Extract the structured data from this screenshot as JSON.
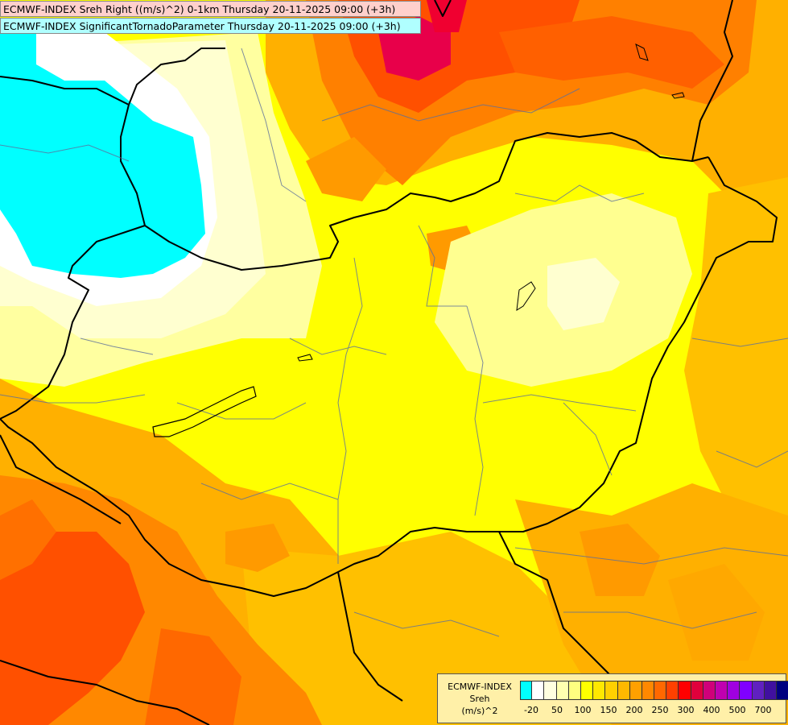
{
  "titles": {
    "line1": "ECMWF-INDEX Sreh Right ((m/s)^2) 0-1km Thursday 20-11-2025 09:00 (+3h)",
    "line2": "ECMWF-INDEX SignificantTornadoParameter Thursday 20-11-2025 09:00 (+3h)"
  },
  "legend": {
    "title_line1": "ECMWF-INDEX",
    "title_line2": "Sreh",
    "title_line3": "(m/s)^2",
    "colors": [
      "#00ffff",
      "#ffffff",
      "#ffffe0",
      "#ffffb0",
      "#ffff80",
      "#ffff00",
      "#ffe800",
      "#ffd000",
      "#ffb800",
      "#ffa000",
      "#ff8800",
      "#ff6800",
      "#ff4000",
      "#ff0000",
      "#e0003c",
      "#d0007a",
      "#c000b0",
      "#a000e0",
      "#8000ff",
      "#6020c0",
      "#4010a0",
      "#000080"
    ],
    "ticks": [
      "-20",
      "50",
      "100",
      "150",
      "200",
      "250",
      "300",
      "400",
      "500",
      "700"
    ]
  },
  "colors": {
    "cyan": "#00ffff",
    "white": "#ffffff",
    "cream": "#ffffc0",
    "pale_yellow": "#ffff80",
    "yellow": "#ffff00",
    "gold": "#ffd000",
    "orange": "#ffa000",
    "dark_orange": "#ff7000",
    "red_orange": "#ff4000",
    "crimson": "#e0003c"
  }
}
